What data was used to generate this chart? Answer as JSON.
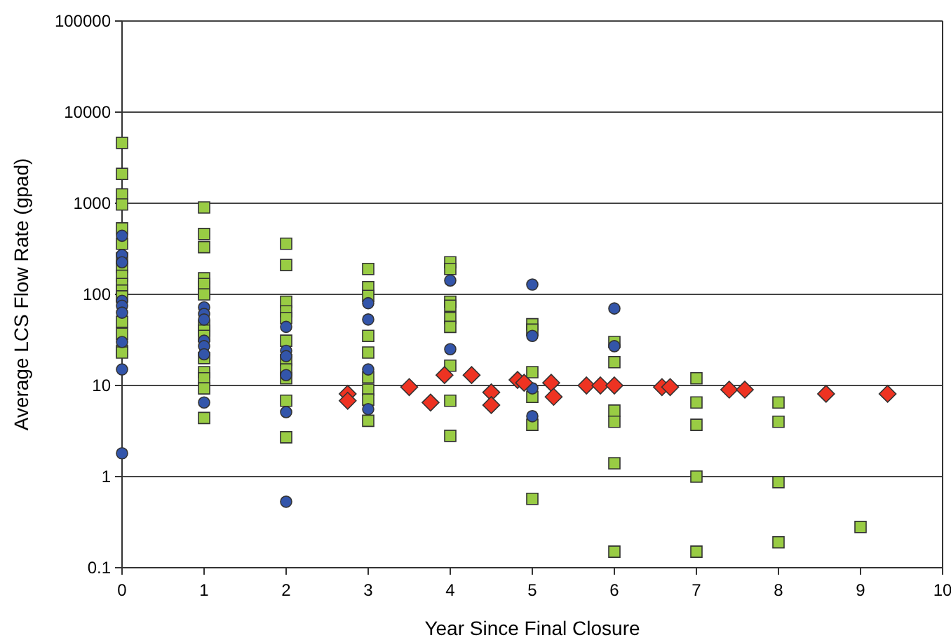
{
  "chart_data": {
    "type": "scatter",
    "xlabel": "Year Since Final Closure",
    "ylabel": "Average LCS Flow Rate (gpad)",
    "log": "y",
    "grid": "y",
    "xlim": [
      0,
      10
    ],
    "xticks": [
      0,
      1,
      2,
      3,
      4,
      5,
      6,
      7,
      8,
      9,
      10
    ],
    "ylim": [
      0.1,
      100000
    ],
    "yticks": [
      {
        "value": 0.1,
        "label": "0.1"
      },
      1,
      10,
      100,
      1000,
      10000,
      100000
    ],
    "series": [
      {
        "color": "#99cc44",
        "marker": "square",
        "x": [
          0,
          0,
          0,
          0,
          0,
          0,
          0,
          0,
          0,
          0,
          0,
          0,
          0,
          0,
          0,
          0,
          1,
          1,
          1,
          1,
          1,
          1,
          1,
          1,
          1,
          1,
          1,
          1,
          1,
          1,
          1,
          1,
          2,
          2,
          2,
          2,
          2,
          2,
          2,
          2,
          2,
          2,
          2,
          3,
          3,
          3,
          3,
          3,
          3,
          3,
          3,
          3,
          4,
          4,
          4,
          4,
          4,
          4,
          4,
          4,
          4,
          5,
          5,
          5,
          5,
          5,
          5,
          6,
          6,
          6,
          6,
          6,
          6,
          7,
          7,
          7,
          7,
          7,
          8,
          8,
          8,
          8,
          9
        ],
        "values": [
          4600,
          2100,
          1250,
          970,
          530,
          360,
          250,
          200,
          160,
          130,
          110,
          95,
          50,
          37,
          24,
          23,
          900,
          460,
          330,
          150,
          120,
          105,
          45,
          40,
          35,
          20,
          14,
          12,
          9.3,
          4.4,
          130,
          100,
          360,
          210,
          83,
          65,
          55,
          31,
          19,
          15,
          12,
          6.8,
          2.7,
          190,
          120,
          96,
          35,
          23,
          12.3,
          9,
          7,
          4.1,
          225,
          190,
          83,
          75,
          55,
          44,
          16.5,
          6.8,
          2.8,
          47,
          41,
          14,
          7.5,
          3.7,
          0.57,
          30,
          18,
          5.3,
          4,
          1.4,
          0.15,
          12,
          6.5,
          3.7,
          1,
          0.15,
          6.5,
          4,
          0.87,
          0.19,
          0.28
        ]
      },
      {
        "color": "#3355aa",
        "marker": "circle",
        "x": [
          0,
          0,
          0,
          0,
          0,
          0,
          0,
          0,
          0,
          1,
          1,
          1,
          1,
          1,
          1,
          1,
          2,
          2,
          2,
          2,
          2,
          2,
          3,
          3,
          3,
          3,
          4,
          4,
          5,
          5,
          5,
          5,
          6,
          6
        ],
        "values": [
          440,
          270,
          225,
          85,
          75,
          63,
          30,
          15,
          1.8,
          72,
          61,
          53,
          31,
          27,
          22,
          6.5,
          44,
          24,
          21,
          13,
          5.1,
          0.53,
          80,
          53,
          15,
          5.5,
          142,
          25,
          128,
          35,
          9.3,
          4.6,
          70,
          27
        ]
      },
      {
        "color": "#ee3322",
        "marker": "diamond",
        "x": [
          2.75,
          2.75,
          3.5,
          3.76,
          3.93,
          4.26,
          4.5,
          4.5,
          4.82,
          4.9,
          5.23,
          5.26,
          5.66,
          5.83,
          6,
          6.58,
          6.68,
          7.4,
          7.59,
          8.58,
          9.33
        ],
        "values": [
          8.1,
          6.8,
          9.6,
          6.5,
          13,
          13,
          8.4,
          6.1,
          11.5,
          10.7,
          10.7,
          7.5,
          10,
          10,
          10,
          9.6,
          9.6,
          9,
          9,
          8.1,
          8.1
        ]
      }
    ]
  }
}
